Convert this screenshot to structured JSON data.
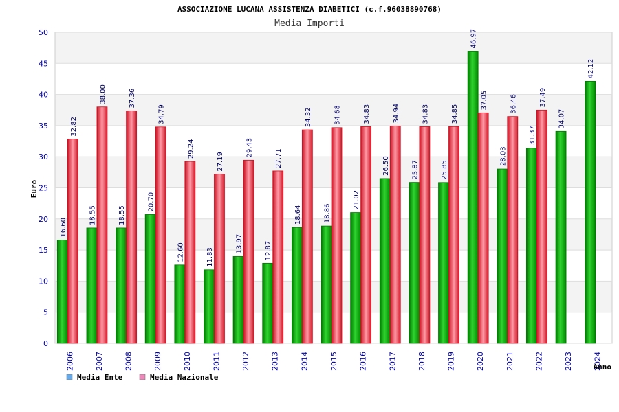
{
  "chart_data": {
    "type": "bar",
    "title": "ASSOCIAZIONE LUCANA ASSISTENZA DIABETICI (c.f.96038890768)",
    "subtitle": "Media Importi",
    "xlabel": "Anno",
    "ylabel": "Euro",
    "ylim": [
      0,
      50
    ],
    "yticks": [
      0,
      5,
      10,
      15,
      20,
      25,
      30,
      35,
      40,
      45,
      50
    ],
    "categories": [
      "2006",
      "2007",
      "2008",
      "2009",
      "2010",
      "2011",
      "2012",
      "2013",
      "2014",
      "2015",
      "2016",
      "2017",
      "2018",
      "2019",
      "2020",
      "2021",
      "2022",
      "2023",
      "2024"
    ],
    "series": [
      {
        "name": "Media Ente",
        "legend_color": "#66aaee",
        "values": [
          16.6,
          18.55,
          18.55,
          20.7,
          12.6,
          11.83,
          13.97,
          12.87,
          18.64,
          18.86,
          21.02,
          26.5,
          25.87,
          25.85,
          46.97,
          28.03,
          31.37,
          34.07,
          42.12
        ],
        "labels": [
          "16.60",
          "18.55",
          "18.55",
          "20.70",
          "12.60",
          "11.83",
          "13.97",
          "12.87",
          "18.64",
          "18.86",
          "21.02",
          "26.50",
          "25.87",
          "25.85",
          "46.97",
          "28.03",
          "31.37",
          "34.07",
          "42.12"
        ]
      },
      {
        "name": "Media Nazionale",
        "legend_color": "#ee88bb",
        "values": [
          32.82,
          38.0,
          37.36,
          34.79,
          29.24,
          27.19,
          29.43,
          27.71,
          34.32,
          34.68,
          34.83,
          34.94,
          34.83,
          34.85,
          37.05,
          36.46,
          37.49,
          null,
          null
        ],
        "labels": [
          "32.82",
          "38.00",
          "37.36",
          "34.79",
          "29.24",
          "27.19",
          "29.43",
          "27.71",
          "34.32",
          "34.68",
          "34.83",
          "34.94",
          "34.83",
          "34.85",
          "37.05",
          "36.46",
          "37.49",
          "",
          ""
        ]
      }
    ],
    "grid": true,
    "legend_position": "bottom-left"
  },
  "colors": {
    "axis_text": "#0000aa",
    "value_text": "#000066",
    "green_dark": "#007700",
    "green_light": "#33dd33",
    "red_dark": "#cc1122",
    "red_light": "#ff8899",
    "band": "#f3f3f3",
    "grid": "#dddddd"
  }
}
